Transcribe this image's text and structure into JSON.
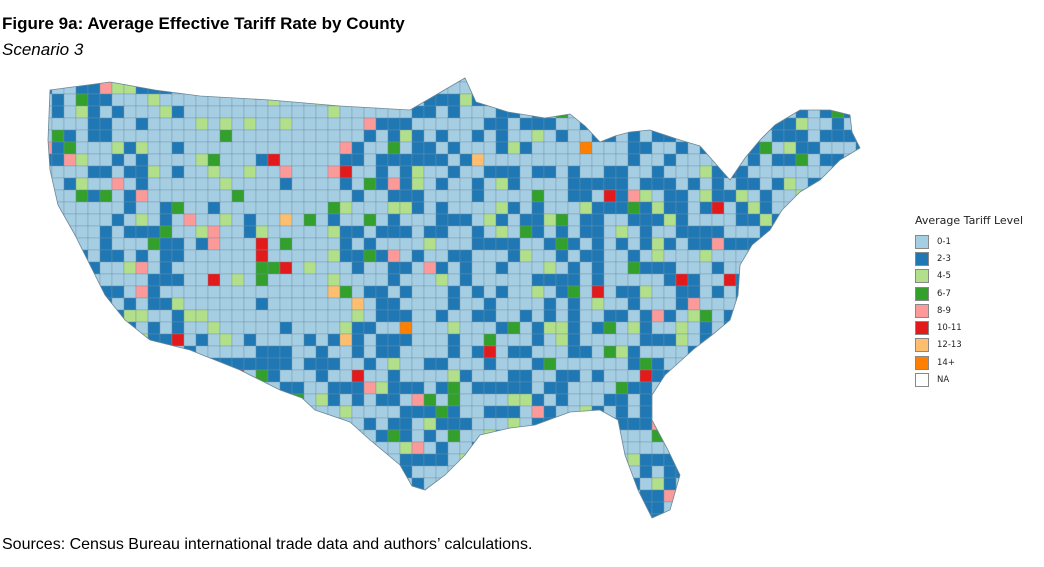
{
  "title": "Figure 9a: Average Effective Tariff Rate by County",
  "subtitle": "Scenario 3",
  "legend": {
    "title": "Average Tariff Level",
    "items": [
      {
        "label": "0-1",
        "color": "#a6cee3"
      },
      {
        "label": "2-3",
        "color": "#1f78b4"
      },
      {
        "label": "4-5",
        "color": "#b2df8a"
      },
      {
        "label": "6-7",
        "color": "#33a02c"
      },
      {
        "label": "8-9",
        "color": "#fb9a99"
      },
      {
        "label": "10-11",
        "color": "#e31a1c"
      },
      {
        "label": "12-13",
        "color": "#fdbf6f"
      },
      {
        "label": "14+",
        "color": "#ff7f00"
      },
      {
        "label": "NA",
        "color": "#ffffff"
      }
    ]
  },
  "sources": "Sources: Census Bureau international trade data and authors’ calculations."
}
